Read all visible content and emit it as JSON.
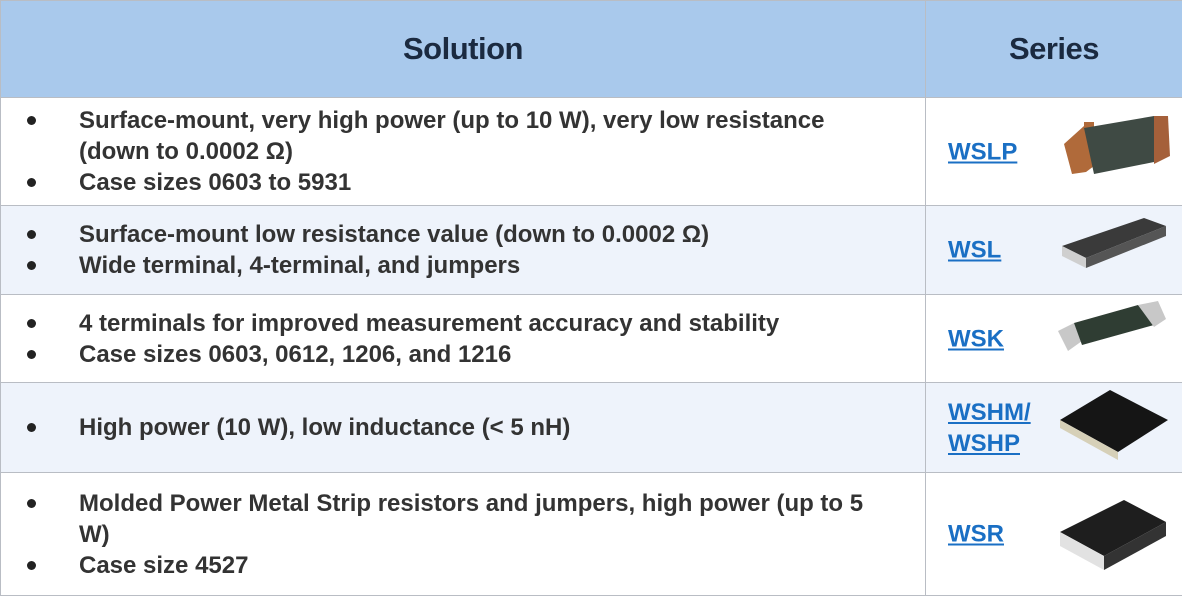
{
  "table": {
    "header": [
      "Solution",
      "Series"
    ],
    "rows": [
      {
        "bullets": [
          "Surface-mount, very high power (up to 10 W), very low resistance (down to 0.0002 Ω)",
          "Case sizes 0603 to 5931"
        ],
        "series": [
          "WSLP"
        ]
      },
      {
        "bullets": [
          "Surface-mount low resistance value (down to 0.0002 Ω)",
          "Wide terminal, 4-terminal, and jumpers"
        ],
        "series": [
          "WSL"
        ]
      },
      {
        "bullets": [
          "4 terminals for improved measurement accuracy and stability",
          "Case sizes 0603, 0612, 1206, and 1216"
        ],
        "series": [
          "WSK"
        ]
      },
      {
        "bullets": [
          "High power (10 W), low inductance (< 5 nH)"
        ],
        "series": [
          "WSHM/",
          "WSHP"
        ]
      },
      {
        "bullets": [
          "Molded Power Metal Strip resistors and jumpers, high power (up to 5 W)",
          "Case size 4527"
        ],
        "series": [
          "WSR"
        ]
      }
    ]
  }
}
